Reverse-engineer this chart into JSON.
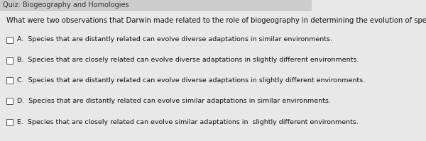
{
  "title": "Quiz: Biogeography and Homologies",
  "question": "What were two observations that Darwin made related to the role of biogeography in determining the evolution of species?",
  "options": [
    "A.  Species that are distantly related can evolve diverse adaptations in similar environments.",
    "B.  Species that are closely related can evolve diverse adaptations in slightly different environments.",
    "C.  Species that are distantly related can evolve diverse adaptations in slightly different environments.",
    "D.  Species that are distantly related can evolve similar adaptations in similar environments.",
    "E.  Species that are closely related can evolve similar adaptations in  slightly different environments."
  ],
  "bg_color": "#e8e8e8",
  "content_bg": "#f5f5f5",
  "title_color": "#333333",
  "question_color": "#111111",
  "option_color": "#111111",
  "title_fontsize": 7.0,
  "question_fontsize": 7.2,
  "option_fontsize": 6.8,
  "title_bar_color": "#cccccc"
}
